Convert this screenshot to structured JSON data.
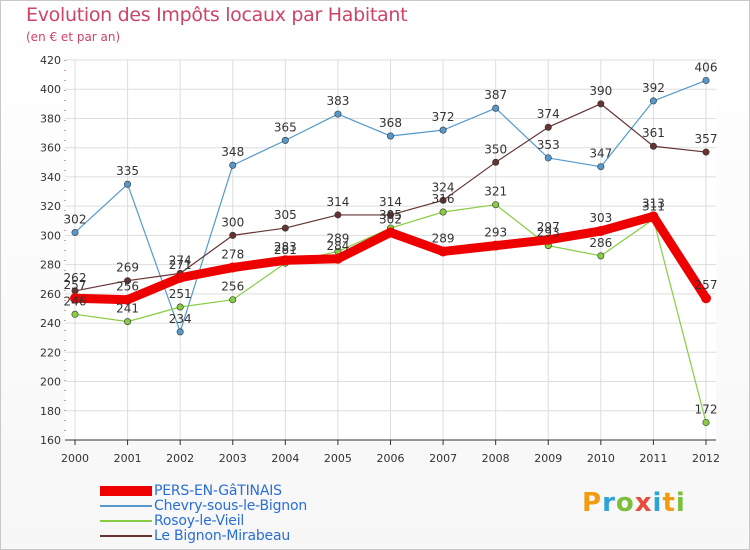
{
  "chart_data": {
    "type": "line",
    "title": "Evolution des Impôts locaux par Habitant",
    "subtitle": "(en € et par an)",
    "xlabel": "",
    "ylabel": "",
    "x": [
      "2000",
      "2001",
      "2002",
      "2003",
      "2004",
      "2005",
      "2006",
      "2007",
      "2008",
      "2009",
      "2010",
      "2011",
      "2012"
    ],
    "ylim": [
      160,
      420
    ],
    "yticks": [
      160,
      180,
      200,
      220,
      240,
      260,
      280,
      300,
      320,
      340,
      360,
      380,
      400,
      420
    ],
    "grid": true,
    "legend_position": "bottom-left",
    "series": [
      {
        "name": "PERS-EN-GâTINAIS",
        "color": "#ee0000",
        "values": [
          257,
          256,
          271,
          278,
          283,
          284,
          302,
          289,
          293,
          297,
          303,
          313,
          257
        ],
        "labels": [
          "257",
          "256",
          "271",
          "278",
          "283",
          "284",
          "302",
          "289",
          "293",
          "297",
          "303",
          "313",
          "257"
        ]
      },
      {
        "name": "Chevry-sous-le-Bignon",
        "color": "#5599cc",
        "values": [
          302,
          335,
          234,
          348,
          365,
          383,
          368,
          372,
          387,
          353,
          347,
          392,
          406
        ],
        "labels": [
          "302",
          "335",
          "234",
          "348",
          "365",
          "383",
          "368",
          "372",
          "387",
          "353",
          "347",
          "392",
          "406"
        ]
      },
      {
        "name": "Rosoy-le-Vieil",
        "color": "#88cc44",
        "values": [
          246,
          241,
          251,
          256,
          281,
          289,
          305,
          316,
          321,
          293,
          286,
          311,
          172
        ],
        "labels": [
          "246",
          "241",
          "251",
          "256",
          "281",
          "289",
          "305",
          "316",
          "321",
          "293",
          "286",
          "311",
          "172"
        ]
      },
      {
        "name": "Le Bignon-Mirabeau",
        "color": "#663333",
        "values": [
          262,
          269,
          274,
          300,
          305,
          314,
          314,
          324,
          350,
          374,
          390,
          361,
          357
        ],
        "labels": [
          "262",
          "269",
          "274",
          "300",
          "305",
          "314",
          "314",
          "324",
          "350",
          "374",
          "390",
          "361",
          "357"
        ]
      }
    ]
  },
  "logo": {
    "text": "Proxiti",
    "colors": [
      "#f39c12",
      "#2ea3d6",
      "#7cbf3a",
      "#e74c3c",
      "#2ea3d6",
      "#f39c12",
      "#7cbf3a"
    ]
  }
}
